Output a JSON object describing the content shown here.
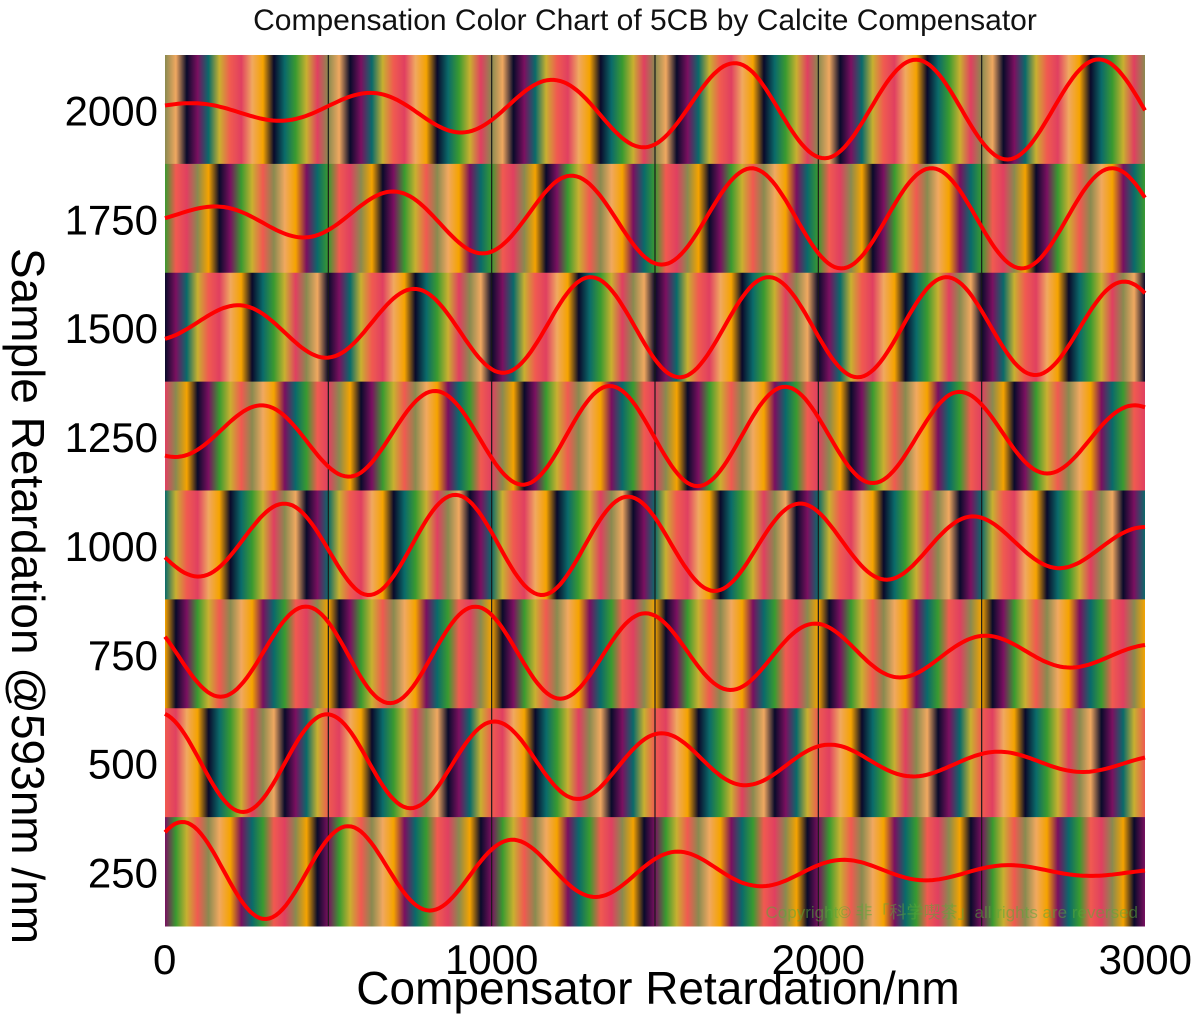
{
  "chart_data": {
    "type": "heatmap",
    "title": "Compensation Color Chart of 5CB by Calcite Compensator",
    "xlabel": "Compensator Retardation/nm",
    "ylabel": "Sample Retardation @593nm /nm",
    "xlim": [
      0,
      3000
    ],
    "xticks": [
      "0",
      "1000",
      "2000",
      "3000"
    ],
    "yticks": [
      "250",
      "500",
      "750",
      "1000",
      "1250",
      "1500",
      "1750",
      "2000"
    ],
    "vertical_gridlines": [
      500,
      1000,
      1500,
      2000,
      2500
    ],
    "curve_color": "#ff0000",
    "rows": [
      {
        "sample_retardation": 2000,
        "curve_amplitude": [
          0.05,
          0.16,
          0.3,
          0.48,
          0.5,
          0.5
        ]
      },
      {
        "sample_retardation": 1750,
        "curve_amplitude": [
          0.08,
          0.24,
          0.42,
          0.5,
          0.5,
          0.5
        ]
      },
      {
        "sample_retardation": 1500,
        "curve_amplitude": [
          0.15,
          0.34,
          0.5,
          0.5,
          0.5,
          0.45
        ]
      },
      {
        "sample_retardation": 1250,
        "curve_amplitude": [
          0.2,
          0.42,
          0.5,
          0.5,
          0.45,
          0.3
        ]
      },
      {
        "sample_retardation": 1000,
        "curve_amplitude": [
          0.28,
          0.5,
          0.5,
          0.45,
          0.3,
          0.18
        ]
      },
      {
        "sample_retardation": 750,
        "curve_amplitude": [
          0.4,
          0.5,
          0.45,
          0.35,
          0.2,
          0.1
        ]
      },
      {
        "sample_retardation": 500,
        "curve_amplitude": [
          0.5,
          0.48,
          0.38,
          0.22,
          0.12,
          0.08
        ]
      },
      {
        "sample_retardation": 250,
        "curve_amplitude": [
          0.5,
          0.45,
          0.28,
          0.15,
          0.08,
          0.03
        ]
      }
    ],
    "color_scale": [
      "#f0a860",
      "#f5a300",
      "#0a0a2a",
      "#7a1060",
      "#0a6a6a",
      "#3a9a30",
      "#c8b030",
      "#f05a50",
      "#e04060",
      "#8a8a50"
    ],
    "watermark": "Copyright© 非「科学喫茶」all rights are reversed"
  }
}
